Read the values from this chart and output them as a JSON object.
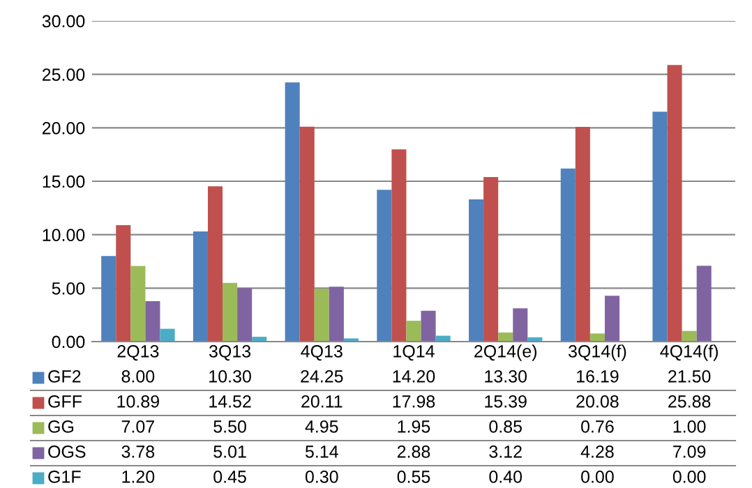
{
  "chart_data": {
    "type": "bar",
    "categories": [
      "2Q13",
      "3Q13",
      "4Q13",
      "1Q14",
      "2Q14(e)",
      "3Q14(f)",
      "4Q14(f)"
    ],
    "series": [
      {
        "name": "GF2",
        "color": "#4f81bd",
        "values": [
          8.0,
          10.3,
          24.25,
          14.2,
          13.3,
          16.19,
          21.5
        ],
        "value_labels": [
          "8.00",
          "10.30",
          "24.25",
          "14.20",
          "13.30",
          "16.19",
          "21.50"
        ]
      },
      {
        "name": "GFF",
        "color": "#c0504d",
        "values": [
          10.89,
          14.52,
          20.11,
          17.98,
          15.39,
          20.08,
          25.88
        ],
        "value_labels": [
          "10.89",
          "14.52",
          "20.11",
          "17.98",
          "15.39",
          "20.08",
          "25.88"
        ]
      },
      {
        "name": "GG",
        "color": "#9bbb59",
        "values": [
          7.07,
          5.5,
          4.95,
          1.95,
          0.85,
          0.76,
          1.0
        ],
        "value_labels": [
          "7.07",
          "5.50",
          "4.95",
          "1.95",
          "0.85",
          "0.76",
          "1.00"
        ]
      },
      {
        "name": "OGS",
        "color": "#8064a2",
        "values": [
          3.78,
          5.01,
          5.14,
          2.88,
          3.12,
          4.28,
          7.09
        ],
        "value_labels": [
          "3.78",
          "5.01",
          "5.14",
          "2.88",
          "3.12",
          "4.28",
          "7.09"
        ]
      },
      {
        "name": "G1F",
        "color": "#4bacc6",
        "values": [
          1.2,
          0.45,
          0.3,
          0.55,
          0.4,
          0.0,
          0.0
        ],
        "value_labels": [
          "1.20",
          "0.45",
          "0.30",
          "0.55",
          "0.40",
          "0.00",
          "0.00"
        ]
      }
    ],
    "ylim": [
      0,
      30
    ],
    "yticks": [
      {
        "value": 0,
        "label": "0.00"
      },
      {
        "value": 5,
        "label": "5.00"
      },
      {
        "value": 10,
        "label": "10.00"
      },
      {
        "value": 15,
        "label": "15.00"
      },
      {
        "value": 20,
        "label": "20.00"
      },
      {
        "value": 25,
        "label": "25.00"
      },
      {
        "value": 30,
        "label": "30.00"
      }
    ],
    "grid": "y",
    "legend": "bottom"
  }
}
